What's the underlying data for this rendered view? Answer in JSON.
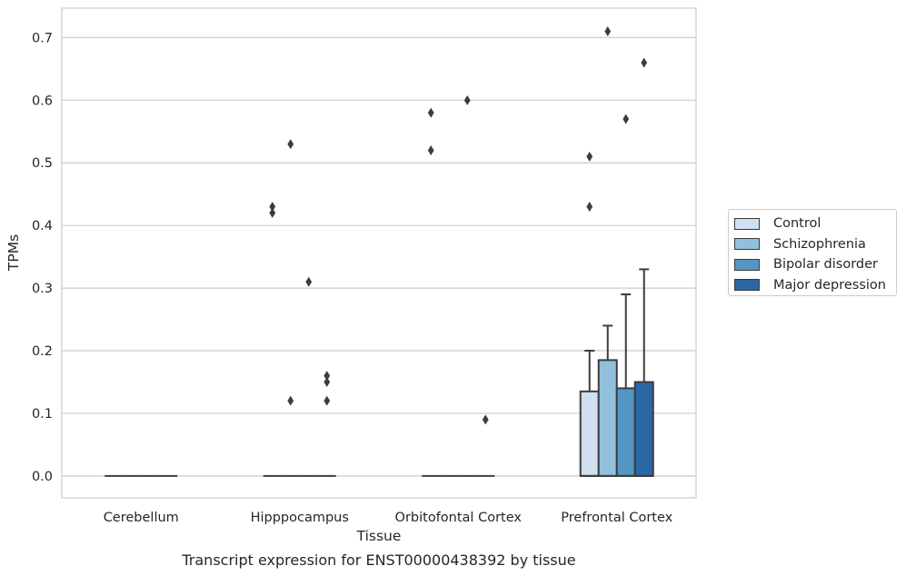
{
  "chart_data": {
    "type": "bar",
    "xlabel": "Tissue",
    "ylabel": "TPMs",
    "caption": "Transcript expression for ENST00000438392 by tissue",
    "ylim": [
      -0.035,
      0.747
    ],
    "yticks": [
      "0.0",
      "0.1",
      "0.2",
      "0.3",
      "0.4",
      "0.5",
      "0.6",
      "0.7"
    ],
    "ytick_values": [
      0,
      0.1,
      0.2,
      0.3,
      0.4,
      0.5,
      0.6,
      0.7
    ],
    "grid": true,
    "legend_position": "right",
    "categories": [
      "Cerebellum",
      "Hipppocampus",
      "Orbitofontal Cortex",
      "Prefrontal Cortex"
    ],
    "series": [
      {
        "name": "Control",
        "color": "#d0e0ee",
        "boxes": [
          {
            "q1": 0,
            "median": 0,
            "q3": 0,
            "whisker_high": 0,
            "outliers": []
          },
          {
            "q1": 0,
            "median": 0,
            "q3": 0,
            "whisker_high": 0,
            "outliers": [
              0.42,
              0.43
            ]
          },
          {
            "q1": 0,
            "median": 0,
            "q3": 0,
            "whisker_high": 0,
            "outliers": [
              0.52,
              0.58
            ]
          },
          {
            "q1": 0,
            "median": 0,
            "q3": 0.135,
            "whisker_high": 0.2,
            "outliers": [
              0.43,
              0.51
            ]
          }
        ]
      },
      {
        "name": "Schizophrenia",
        "color": "#92c0dc",
        "boxes": [
          {
            "q1": 0,
            "median": 0,
            "q3": 0,
            "whisker_high": 0,
            "outliers": []
          },
          {
            "q1": 0,
            "median": 0,
            "q3": 0,
            "whisker_high": 0,
            "outliers": [
              0.12,
              0.53
            ]
          },
          {
            "q1": 0,
            "median": 0,
            "q3": 0,
            "whisker_high": 0,
            "outliers": []
          },
          {
            "q1": 0,
            "median": 0,
            "q3": 0.185,
            "whisker_high": 0.24,
            "outliers": [
              0.71
            ]
          }
        ]
      },
      {
        "name": "Bipolar disorder",
        "color": "#5496c3",
        "boxes": [
          {
            "q1": 0,
            "median": 0,
            "q3": 0,
            "whisker_high": 0,
            "outliers": []
          },
          {
            "q1": 0,
            "median": 0,
            "q3": 0,
            "whisker_high": 0,
            "outliers": [
              0.31
            ]
          },
          {
            "q1": 0,
            "median": 0,
            "q3": 0,
            "whisker_high": 0,
            "outliers": [
              0.6
            ]
          },
          {
            "q1": 0,
            "median": 0,
            "q3": 0.14,
            "whisker_high": 0.29,
            "outliers": [
              0.57
            ]
          }
        ]
      },
      {
        "name": "Major depression",
        "color": "#2a68a6",
        "boxes": [
          {
            "q1": 0,
            "median": 0,
            "q3": 0,
            "whisker_high": 0,
            "outliers": []
          },
          {
            "q1": 0,
            "median": 0,
            "q3": 0,
            "whisker_high": 0,
            "outliers": [
              0.12,
              0.15,
              0.16
            ]
          },
          {
            "q1": 0,
            "median": 0,
            "q3": 0,
            "whisker_high": 0,
            "outliers": [
              0.09
            ]
          },
          {
            "q1": 0,
            "median": 0,
            "q3": 0.15,
            "whisker_high": 0.33,
            "outliers": [
              0.66
            ]
          }
        ]
      }
    ]
  }
}
